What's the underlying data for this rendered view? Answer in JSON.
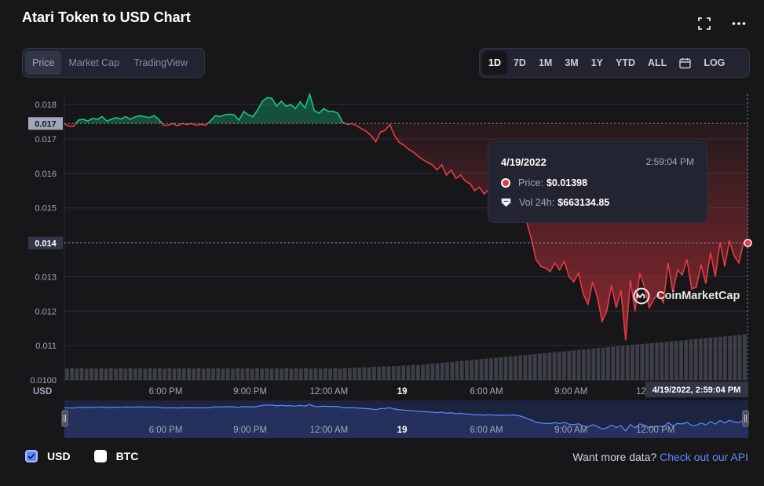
{
  "header": {
    "title": "Atari Token to USD Chart",
    "fullscreen_icon": "fullscreen-icon",
    "more_icon": "more-dots-icon"
  },
  "chart_type_tabs": [
    {
      "label": "Price",
      "active": true
    },
    {
      "label": "Market Cap",
      "active": false
    },
    {
      "label": "TradingView",
      "active": false
    }
  ],
  "range_tabs": [
    {
      "label": "1D",
      "active": true
    },
    {
      "label": "7D",
      "active": false
    },
    {
      "label": "1M",
      "active": false
    },
    {
      "label": "3M",
      "active": false
    },
    {
      "label": "1Y",
      "active": false
    },
    {
      "label": "YTD",
      "active": false
    },
    {
      "label": "ALL",
      "active": false
    },
    {
      "label": "",
      "icon": "calendar-icon",
      "active": false
    },
    {
      "label": "LOG",
      "active": false
    }
  ],
  "tooltip": {
    "date": "4/19/2022",
    "time": "2:59:04 PM",
    "price_label": "Price:",
    "price_value": "$0.01398",
    "vol_label": "Vol 24h:",
    "vol_value": "$663134.85"
  },
  "watermark": "CoinMarketCap",
  "legend": {
    "usd": "USD",
    "btc": "BTC",
    "usd_checked": true,
    "btc_checked": false
  },
  "footer": {
    "text": "Want more data?",
    "link": "Check out our API"
  },
  "colors": {
    "up": "#16c784",
    "down": "#ea3943",
    "accent": "#6188ff",
    "bg": "#17171a"
  },
  "chart_data": {
    "type": "line",
    "currency_label": "USD",
    "y_ticks": [
      "0.0100",
      "0.011",
      "0.012",
      "0.013",
      "0.014",
      "0.015",
      "0.016",
      "0.017",
      "0.018"
    ],
    "y_tick_values": [
      0.01,
      0.011,
      0.012,
      0.013,
      0.014,
      0.015,
      0.016,
      0.017,
      0.018
    ],
    "ylim": [
      0.01,
      0.0183
    ],
    "x_ticks": [
      "6:00 PM",
      "9:00 PM",
      "12:00 AM",
      "19",
      "6:00 AM",
      "9:00 AM",
      "12:00 PM"
    ],
    "x_tick_hours": [
      3.6,
      6.6,
      9.4,
      12.0,
      15.0,
      18.0,
      21.0
    ],
    "reference_price": 0.01745,
    "reference_label": "0.017",
    "current_price": 0.01398,
    "current_label": "0.014",
    "crosshair_label": "4/19/2022, 2:59:04 PM",
    "prices": [
      0.01744,
      0.01737,
      0.01737,
      0.01755,
      0.01757,
      0.01752,
      0.0176,
      0.01757,
      0.01765,
      0.01752,
      0.01758,
      0.01762,
      0.01758,
      0.01765,
      0.01757,
      0.01764,
      0.01767,
      0.01765,
      0.01762,
      0.01768,
      0.01757,
      0.0174,
      0.0174,
      0.01745,
      0.01738,
      0.01745,
      0.01742,
      0.01745,
      0.0174,
      0.01743,
      0.0174,
      0.01753,
      0.01768,
      0.01765,
      0.0177,
      0.01772,
      0.0177,
      0.01755,
      0.0178,
      0.0177,
      0.01765,
      0.01785,
      0.0181,
      0.0182,
      0.01818,
      0.01795,
      0.0181,
      0.01795,
      0.018,
      0.01788,
      0.01808,
      0.0179,
      0.0183,
      0.01782,
      0.01775,
      0.01788,
      0.0178,
      0.0178,
      0.01775,
      0.01748,
      0.01742,
      0.01745,
      0.01738,
      0.0173,
      0.01722,
      0.0171,
      0.01692,
      0.0172,
      0.01725,
      0.01742,
      0.0171,
      0.0169,
      0.01682,
      0.0167,
      0.01662,
      0.0165,
      0.0164,
      0.01632,
      0.01625,
      0.0161,
      0.01625,
      0.01595,
      0.0161,
      0.01585,
      0.01595,
      0.01578,
      0.0157,
      0.0155,
      0.0156,
      0.0154,
      0.01555,
      0.01542,
      0.01545,
      0.0154,
      0.01545,
      0.01548,
      0.0154,
      0.01505,
      0.0146,
      0.0141,
      0.0135,
      0.0133,
      0.01325,
      0.01315,
      0.0134,
      0.0132,
      0.01345,
      0.013,
      0.01285,
      0.0131,
      0.0125,
      0.0122,
      0.01285,
      0.0124,
      0.0117,
      0.012,
      0.01275,
      0.0121,
      0.0126,
      0.01115,
      0.0129,
      0.012,
      0.0131,
      0.0127,
      0.0121,
      0.01235,
      0.0125,
      0.01225,
      0.0134,
      0.01255,
      0.0132,
      0.01305,
      0.0135,
      0.01265,
      0.0127,
      0.01335,
      0.0128,
      0.0137,
      0.013,
      0.014,
      0.0133,
      0.01405,
      0.0136,
      0.0134,
      0.014,
      0.01398
    ],
    "volume_relative": [
      0.25,
      0.26,
      0.25,
      0.26,
      0.25,
      0.26,
      0.25,
      0.26,
      0.25,
      0.26,
      0.25,
      0.26,
      0.25,
      0.26,
      0.25,
      0.26,
      0.25,
      0.26,
      0.25,
      0.26,
      0.25,
      0.26,
      0.25,
      0.26,
      0.25,
      0.26,
      0.25,
      0.26,
      0.25,
      0.26,
      0.25,
      0.26,
      0.25,
      0.26,
      0.25,
      0.26,
      0.25,
      0.26,
      0.25,
      0.26,
      0.25,
      0.26,
      0.25,
      0.26,
      0.25,
      0.26,
      0.25,
      0.26,
      0.25,
      0.26,
      0.25,
      0.26,
      0.25,
      0.26,
      0.25,
      0.26,
      0.25,
      0.26,
      0.26,
      0.27,
      0.27,
      0.28,
      0.28,
      0.29,
      0.29,
      0.3,
      0.3,
      0.31,
      0.31,
      0.32,
      0.32,
      0.33,
      0.33,
      0.34,
      0.35,
      0.36,
      0.37,
      0.38,
      0.39,
      0.4,
      0.41,
      0.42,
      0.43,
      0.44,
      0.45,
      0.46,
      0.47,
      0.48,
      0.49,
      0.5,
      0.51,
      0.52,
      0.53,
      0.54,
      0.55,
      0.56,
      0.57,
      0.58,
      0.59,
      0.6,
      0.61,
      0.62,
      0.63,
      0.64,
      0.65,
      0.66,
      0.67,
      0.68,
      0.69,
      0.7,
      0.71,
      0.72,
      0.73,
      0.74,
      0.75,
      0.76,
      0.77,
      0.78,
      0.79,
      0.8,
      0.81,
      0.82,
      0.83,
      0.84,
      0.85,
      0.86,
      0.87,
      0.88,
      0.89,
      0.9,
      0.91,
      0.92,
      0.93,
      0.94,
      0.95,
      0.96,
      0.97,
      0.98,
      0.99,
      1.0
    ]
  }
}
